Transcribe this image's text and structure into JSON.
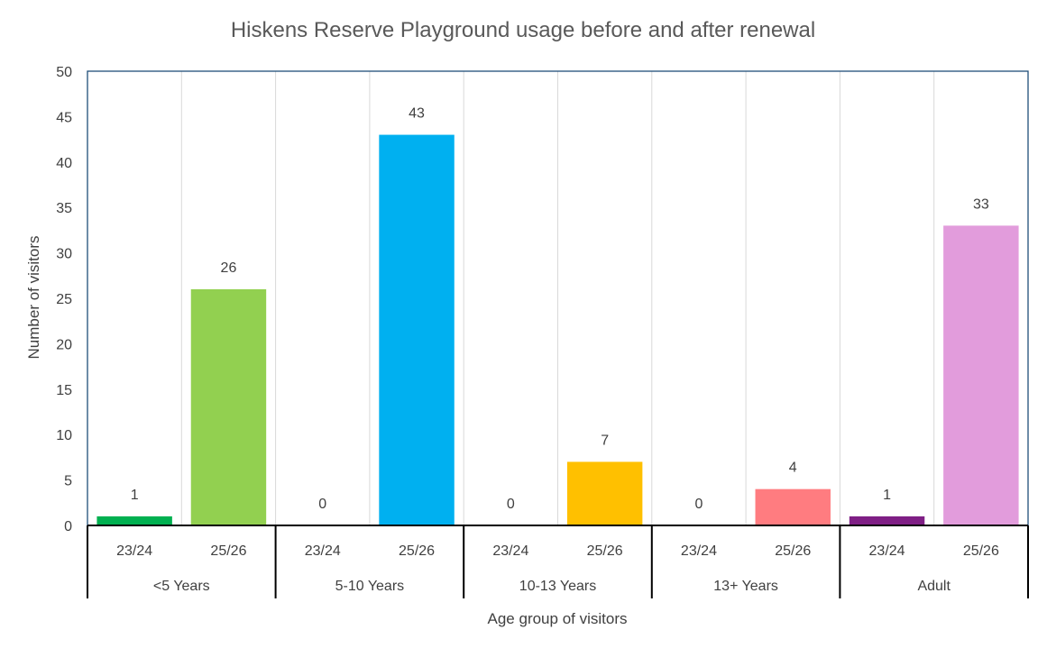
{
  "chart_data": {
    "type": "bar",
    "title": "Hiskens Reserve Playground usage before and after renewal",
    "xlabel": "Age group of visitors",
    "ylabel": "Number of visitors",
    "ylim": [
      0,
      50
    ],
    "ytick_step": 5,
    "grid": "vertical separators",
    "groups": [
      {
        "name": "<5 Years",
        "bars": [
          {
            "period": "23/24",
            "value": 1,
            "color": "#00B050"
          },
          {
            "period": "25/26",
            "value": 26,
            "color": "#92D050"
          }
        ]
      },
      {
        "name": "5-10 Years",
        "bars": [
          {
            "period": "23/24",
            "value": 0,
            "color": "#00B0F0"
          },
          {
            "period": "25/26",
            "value": 43,
            "color": "#00B0F0"
          }
        ]
      },
      {
        "name": "10-13 Years",
        "bars": [
          {
            "period": "23/24",
            "value": 0,
            "color": "#FFC000"
          },
          {
            "period": "25/26",
            "value": 7,
            "color": "#FFC000"
          }
        ]
      },
      {
        "name": "13+ Years",
        "bars": [
          {
            "period": "23/24",
            "value": 0,
            "color": "#FF7C80"
          },
          {
            "period": "25/26",
            "value": 4,
            "color": "#FF7C80"
          }
        ]
      },
      {
        "name": "Adult",
        "bars": [
          {
            "period": "23/24",
            "value": 1,
            "color": "#7F1F85"
          },
          {
            "period": "25/26",
            "value": 33,
            "color": "#E29CDC"
          }
        ]
      }
    ]
  }
}
